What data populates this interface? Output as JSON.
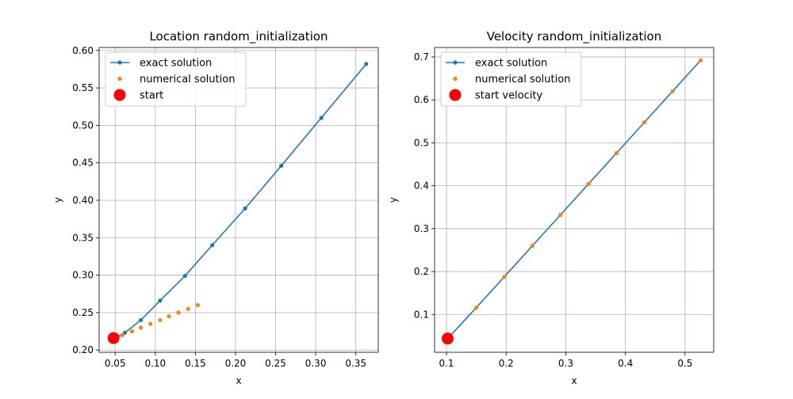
{
  "chart_data": [
    {
      "type": "line",
      "title": "Location random_initialization",
      "xlabel": "x",
      "ylabel": "y",
      "xlim": [
        0.03,
        0.378
      ],
      "ylim": [
        0.197,
        0.604
      ],
      "xticks": [
        0.05,
        0.1,
        0.15,
        0.2,
        0.25,
        0.3,
        0.35
      ],
      "xtick_labels": [
        "0.05",
        "0.10",
        "0.15",
        "0.20",
        "0.25",
        "0.30",
        "0.35"
      ],
      "yticks": [
        0.2,
        0.25,
        0.3,
        0.35,
        0.4,
        0.45,
        0.5,
        0.55,
        0.6
      ],
      "ytick_labels": [
        "0.20",
        "0.25",
        "0.30",
        "0.35",
        "0.40",
        "0.45",
        "0.50",
        "0.55",
        "0.60"
      ],
      "grid": true,
      "legend_position": "top-left",
      "series": [
        {
          "name": "exact solution",
          "kind": "line-marker",
          "color": "#1f77b4",
          "x": [
            0.048,
            0.062,
            0.082,
            0.106,
            0.137,
            0.171,
            0.212,
            0.257,
            0.307,
            0.363
          ],
          "y": [
            0.215,
            0.223,
            0.24,
            0.266,
            0.299,
            0.34,
            0.389,
            0.446,
            0.51,
            0.582
          ]
        },
        {
          "name": "numerical solution",
          "kind": "scatter",
          "color": "#ff7f0e",
          "x": [
            0.059,
            0.071,
            0.082,
            0.094,
            0.106,
            0.117,
            0.129,
            0.141,
            0.153
          ],
          "y": [
            0.22,
            0.225,
            0.23,
            0.235,
            0.24,
            0.245,
            0.25,
            0.255,
            0.26
          ]
        },
        {
          "name": "start",
          "kind": "start",
          "color": "#ff0000",
          "x": [
            0.048
          ],
          "y": [
            0.216
          ]
        }
      ]
    },
    {
      "type": "line",
      "title": "Velocity random_initialization",
      "xlabel": "x",
      "ylabel": "y",
      "xlim": [
        0.08,
        0.548
      ],
      "ylim": [
        0.012,
        0.722
      ],
      "xticks": [
        0.1,
        0.2,
        0.3,
        0.4,
        0.5
      ],
      "xtick_labels": [
        "0.1",
        "0.2",
        "0.3",
        "0.4",
        "0.5"
      ],
      "yticks": [
        0.1,
        0.2,
        0.3,
        0.4,
        0.5,
        0.6,
        0.7
      ],
      "ytick_labels": [
        "0.1",
        "0.2",
        "0.3",
        "0.4",
        "0.5",
        "0.6",
        "0.7"
      ],
      "grid": true,
      "legend_position": "top-left",
      "series": [
        {
          "name": "exact solution",
          "kind": "line",
          "color": "#1f77b4",
          "x": [
            0.102,
            0.15,
            0.197,
            0.244,
            0.291,
            0.338,
            0.385,
            0.432,
            0.479,
            0.526
          ],
          "y": [
            0.044,
            0.116,
            0.188,
            0.26,
            0.332,
            0.404,
            0.476,
            0.548,
            0.62,
            0.692
          ]
        },
        {
          "name": "numerical solution",
          "kind": "scatter",
          "color": "#ff7f0e",
          "x": [
            0.15,
            0.197,
            0.244,
            0.291,
            0.338,
            0.385,
            0.432,
            0.479,
            0.526
          ],
          "y": [
            0.116,
            0.188,
            0.26,
            0.332,
            0.404,
            0.476,
            0.548,
            0.62,
            0.692
          ]
        },
        {
          "name": "start velocity",
          "kind": "start",
          "color": "#ff0000",
          "x": [
            0.102
          ],
          "y": [
            0.044
          ]
        }
      ]
    }
  ]
}
